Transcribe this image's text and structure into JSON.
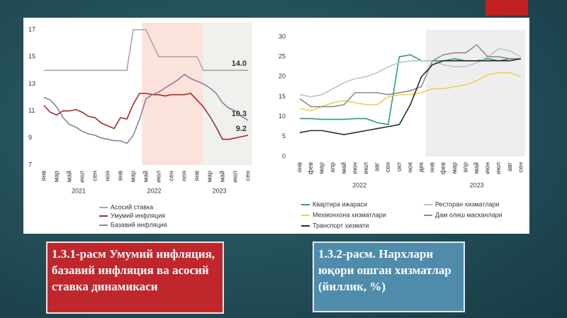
{
  "chart_data": [
    {
      "type": "line",
      "categories": [
        "янв",
        null,
        "мар",
        null,
        "май",
        null,
        "июл",
        null,
        "сен",
        null,
        "ноя",
        null,
        "янв",
        null,
        "мар",
        null,
        "май",
        null,
        "июл",
        null,
        "сен",
        null,
        "ноя",
        null,
        "янв",
        null,
        "мар",
        null,
        "май",
        null,
        "июл",
        null,
        "сен"
      ],
      "year_labels": [
        "2021",
        "2022",
        "2023"
      ],
      "ylim": [
        7,
        17
      ],
      "yticks": [
        7,
        9,
        11,
        13,
        15,
        17
      ],
      "series": [
        {
          "name": "Асосий ставка",
          "color": "#a6a6a6",
          "values": [
            14,
            14,
            14,
            14,
            14,
            14,
            14,
            14,
            14,
            14,
            14,
            14,
            14,
            14,
            17,
            17,
            17,
            16,
            15,
            15,
            15,
            15,
            15,
            15,
            15,
            14,
            14,
            14,
            14,
            14,
            14,
            14,
            14
          ],
          "value_labels": [
            null,
            null,
            null,
            null,
            null,
            null,
            null,
            null,
            null,
            null,
            null,
            null,
            null,
            null,
            null,
            null,
            null,
            null,
            null,
            null,
            null,
            null,
            null,
            null,
            null,
            null,
            null,
            null,
            null,
            null,
            null,
            null,
            "14.0"
          ]
        },
        {
          "name": "Умумий инфляция",
          "color": "#a52a2a",
          "values": [
            11.4,
            10.9,
            10.7,
            11,
            11,
            11.1,
            10.9,
            10.6,
            10.5,
            10.1,
            9.9,
            9.7,
            10.5,
            10.4,
            11.5,
            12.3,
            12.3,
            12.2,
            12.2,
            12.1,
            12.2,
            12.2,
            12.2,
            12.3,
            11.8,
            11.3,
            10.6,
            9.8,
            8.9,
            8.9,
            9,
            9.1,
            9.2
          ],
          "value_labels": [
            null,
            null,
            null,
            null,
            null,
            null,
            null,
            null,
            null,
            null,
            null,
            null,
            null,
            null,
            null,
            null,
            null,
            null,
            null,
            null,
            null,
            null,
            null,
            null,
            null,
            null,
            null,
            null,
            null,
            null,
            null,
            null,
            "9.2"
          ]
        },
        {
          "name": "Базавий инфляция",
          "color": "#8e7d9c",
          "values": [
            12,
            11.8,
            11.3,
            10.5,
            10,
            9.8,
            9.5,
            9.3,
            9.2,
            9,
            8.9,
            8.8,
            8.8,
            8.6,
            9.2,
            10.4,
            11.9,
            12.2,
            12.4,
            12.7,
            13,
            13.3,
            13.7,
            13.4,
            13.2,
            13,
            12.7,
            12.3,
            11.6,
            11.2,
            11,
            10.6,
            10.3
          ],
          "value_labels": [
            null,
            null,
            null,
            null,
            null,
            null,
            null,
            null,
            null,
            null,
            null,
            null,
            null,
            null,
            null,
            null,
            null,
            null,
            null,
            null,
            null,
            null,
            null,
            null,
            null,
            null,
            null,
            null,
            null,
            null,
            null,
            null,
            "10.3"
          ]
        }
      ]
    },
    {
      "type": "line",
      "categories": [
        "янв",
        "фев",
        "мар",
        "апр",
        "май",
        "июн",
        "июл",
        "авг",
        "сен",
        "окт",
        "ноя",
        "дек",
        "янв",
        "фев",
        "мар",
        "апр",
        "май",
        "июн",
        "июл",
        "авг",
        "сен"
      ],
      "year_labels": [
        "2022",
        "2023"
      ],
      "ylim": [
        0,
        30
      ],
      "yticks": [
        0,
        5,
        10,
        15,
        20,
        25,
        30
      ],
      "series": [
        {
          "name": "Квартира ижараси",
          "color": "#2e9e6b",
          "values": [
            9.5,
            9.5,
            9.3,
            9.3,
            9.3,
            9.5,
            9.5,
            8.5,
            8,
            25,
            25.5,
            24,
            24,
            24,
            24.5,
            24,
            24,
            24.5,
            24,
            24.5,
            24.5
          ]
        },
        {
          "name": "Ресторан хизматлари",
          "color": "#b8c4d0",
          "values": [
            15.5,
            15,
            15.5,
            17,
            18.5,
            19.5,
            20,
            21,
            22.5,
            23.5,
            24,
            24,
            24,
            23,
            22.5,
            22.5,
            23.5,
            25,
            27,
            26.5,
            25
          ]
        },
        {
          "name": "Мехмонхона хизматлари",
          "color": "#e8d44d",
          "values": [
            12,
            11.5,
            12.5,
            13.5,
            14,
            13.5,
            13,
            13,
            15,
            15.5,
            15.5,
            16,
            17,
            17,
            17.5,
            18,
            19,
            20.5,
            21,
            21,
            20
          ]
        },
        {
          "name": "Дам олиш масканлари",
          "color": "#8c8c8c",
          "values": [
            14.5,
            12.5,
            12.5,
            12.5,
            13,
            16,
            16,
            16,
            15.5,
            16,
            16.5,
            17.5,
            24,
            25.5,
            26,
            26,
            28,
            25,
            25,
            24.5,
            24.5
          ]
        },
        {
          "name": "Транспорт хизмати",
          "color": "#2b2b2b",
          "values": [
            6,
            6.5,
            6.5,
            6,
            5.5,
            6,
            6.5,
            7,
            7.5,
            8,
            13,
            20,
            23,
            24,
            24,
            24,
            24,
            24,
            24,
            24,
            24.5
          ]
        }
      ]
    }
  ],
  "captions": [
    "1.3.1-расм Умумий инфляция, базавий инфляция ва асосий ставка динамикаси",
    "1.3.2-расм. Нархлари юқори ошган хизматлар (йиллик, %)"
  ]
}
